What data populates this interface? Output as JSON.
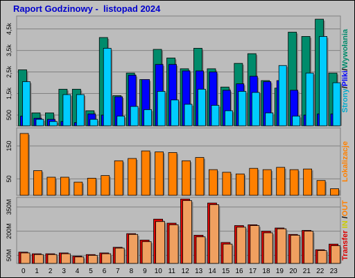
{
  "chart_data": {
    "title": "Raport Godzinowy -  listopad 2024",
    "type": "bar",
    "categories": [
      "0",
      "1",
      "2",
      "3",
      "4",
      "5",
      "6",
      "7",
      "8",
      "9",
      "10",
      "11",
      "12",
      "13",
      "14",
      "15",
      "16",
      "17",
      "18",
      "19",
      "20",
      "21",
      "22",
      "23"
    ],
    "colors": {
      "pages": "#0000ff",
      "files": "#00ccff",
      "hits": "#008b6b",
      "visits": "#ff8000",
      "traffic_in": "#dd0000",
      "traffic_out": "#f0a060",
      "legend_ratio": "#00aacc",
      "legend_in": "#cccc00",
      "legend_out": "#ff8000"
    },
    "panels": [
      {
        "id": "requests",
        "axis_label_parts": [
          {
            "text": "Strony",
            "color": "#00aacc"
          },
          {
            "text": "/",
            "color": "#000000"
          },
          {
            "text": "Pliki",
            "color": "#0000ff"
          },
          {
            "text": "/",
            "color": "#000000"
          },
          {
            "text": "Wywołania",
            "color": "#008b6b"
          }
        ],
        "y_ticks": [
          "500",
          "1,5k",
          "2,5k",
          "3,5k",
          "4,5k"
        ],
        "y_tick_values": [
          500,
          1500,
          2500,
          3500,
          4500
        ],
        "ylim": [
          0,
          5100
        ],
        "series": [
          {
            "name": "Wywołania",
            "values": [
              2600,
              600,
              600,
              1700,
              1700,
              700,
              4100,
              1400,
              2450,
              2150,
              3550,
              3150,
              2650,
              3600,
              2650,
              1800,
              2900,
              3350,
              2100,
              1750,
              4350,
              4150,
              4950,
              2450
            ]
          },
          {
            "name": "Pliki",
            "values": [
              450,
              350,
              300,
              200,
              150,
              550,
              500,
              1350,
              2350,
              2150,
              2850,
              2850,
              2550,
              2550,
              2500,
              1650,
              1950,
              2300,
              2050,
              2100,
              1650,
              500,
              550,
              550
            ]
          },
          {
            "name": "Strony",
            "values": [
              2050,
              300,
              200,
              1450,
              1450,
              300,
              3600,
              450,
              900,
              750,
              1600,
              1200,
              1000,
              1700,
              950,
              700,
              1600,
              1550,
              600,
              2800,
              450,
              2450,
              4150,
              2000
            ]
          }
        ]
      },
      {
        "id": "visits",
        "axis_label_parts": [
          {
            "text": "Lokalizacje",
            "color": "#ff8000"
          }
        ],
        "y_ticks": [
          "50",
          "150"
        ],
        "y_tick_values": [
          50,
          150
        ],
        "ylim": [
          0,
          205
        ],
        "series": [
          {
            "name": "Lokalizacje",
            "values": [
              188,
              75,
              55,
              55,
              40,
              52,
              60,
              105,
              112,
              135,
              132,
              130,
              105,
              115,
              78,
              70,
              65,
              82,
              78,
              85,
              78,
              80,
              45,
              20
            ]
          }
        ]
      },
      {
        "id": "traffic",
        "axis_label_parts": [
          {
            "text": "Transfer",
            "color": "#dd0000"
          },
          {
            "text": " IN",
            "color": "#cccc00"
          },
          {
            "text": " /",
            "color": "#000000"
          },
          {
            "text": "OUT",
            "color": "#ff8000"
          }
        ],
        "y_ticks": [
          "50M",
          "200M",
          "350M"
        ],
        "y_tick_values": [
          50,
          200,
          350
        ],
        "ylim": [
          0,
          410
        ],
        "series": [
          {
            "name": "IN",
            "values": [
              70,
              60,
              60,
              65,
              45,
              55,
              65,
              100,
              185,
              145,
              275,
              250,
              400,
              175,
              375,
              130,
              235,
              240,
              200,
              220,
              180,
              205,
              85,
              120
            ]
          },
          {
            "name": "OUT",
            "values": [
              65,
              55,
              55,
              60,
              40,
              50,
              60,
              95,
              180,
              135,
              260,
              240,
              390,
              165,
              365,
              120,
              225,
              235,
              190,
              215,
              175,
              200,
              80,
              110
            ]
          }
        ]
      }
    ]
  }
}
